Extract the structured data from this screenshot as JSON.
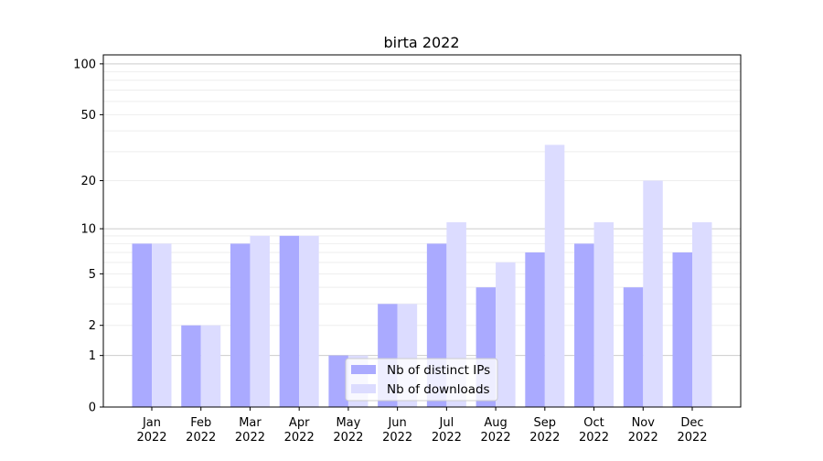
{
  "chart_data": {
    "type": "bar",
    "title": "birta 2022",
    "xlabel": "",
    "ylabel": "",
    "yscale": "log10(1+y)",
    "ylim": [
      0,
      113
    ],
    "yticks": [
      0,
      1,
      2,
      5,
      10,
      20,
      50,
      100
    ],
    "ytick_labels": [
      "0",
      "1",
      "2",
      "5",
      "10",
      "20",
      "50",
      "100"
    ],
    "grid": true,
    "legend_position": "lower-center",
    "categories": [
      "Jan\n2022",
      "Feb\n2022",
      "Mar\n2022",
      "Apr\n2022",
      "May\n2022",
      "Jun\n2022",
      "Jul\n2022",
      "Aug\n2022",
      "Sep\n2022",
      "Oct\n2022",
      "Nov\n2022",
      "Dec\n2022"
    ],
    "series": [
      {
        "name": "Nb of distinct IPs",
        "color": "#aaaaff",
        "values": [
          8,
          2,
          8,
          9,
          1,
          3,
          8,
          4,
          7,
          8,
          4,
          7
        ]
      },
      {
        "name": "Nb of downloads",
        "color": "#dcdcff",
        "values": [
          8,
          2,
          9,
          9,
          1,
          3,
          11,
          6,
          33,
          11,
          20,
          11
        ]
      }
    ]
  }
}
